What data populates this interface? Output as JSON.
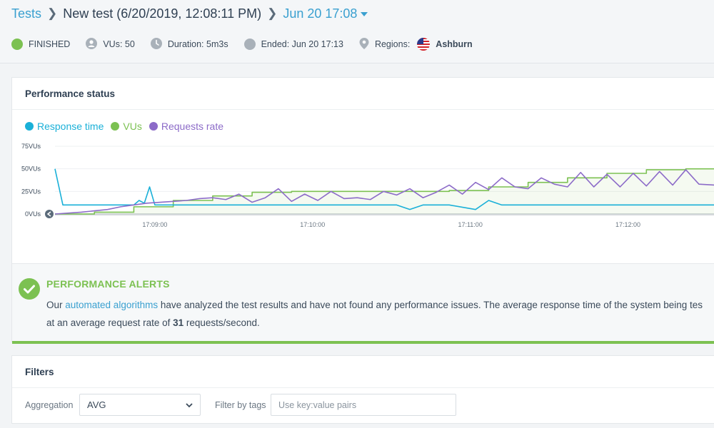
{
  "breadcrumb": {
    "root": "Tests",
    "test_name": "New test (6/20/2019, 12:08:11 PM)",
    "run": "Jun 20 17:08"
  },
  "status": {
    "state": "FINISHED",
    "vus": "VUs: 50",
    "duration": "Duration: 5m3s",
    "ended": "Ended: Jun 20 17:13",
    "regions_label": "Regions:",
    "region": "Ashburn"
  },
  "performance": {
    "title": "Performance status",
    "legend": [
      {
        "name": "Response time",
        "color": "#1ab0d8"
      },
      {
        "name": "VUs",
        "color": "#7cc152"
      },
      {
        "name": "Requests rate",
        "color": "#8c6bc8"
      }
    ]
  },
  "chart_data": {
    "type": "line",
    "x_ticks": [
      "17:09:00",
      "17:10:00",
      "17:11:00",
      "17:12:00"
    ],
    "y_ticks": [
      "75VUs",
      "50VUs",
      "25VUs",
      "0VUs"
    ],
    "ylim": [
      0,
      75
    ],
    "x_range_seconds": [
      0,
      251
    ],
    "x_tick_seconds": [
      38,
      98,
      158,
      218
    ],
    "series": [
      {
        "name": "VUs",
        "color": "#7cc152",
        "x": [
          0,
          15,
          30,
          45,
          60,
          75,
          90,
          105,
          120,
          135,
          150,
          165,
          180,
          195,
          210,
          225,
          240,
          251
        ],
        "y": [
          0,
          2,
          8,
          15,
          20,
          24,
          25,
          25,
          25,
          25,
          26,
          30,
          35,
          40,
          45,
          49,
          50,
          50
        ]
      },
      {
        "name": "Response time",
        "color": "#1ab0d8",
        "x": [
          0,
          3,
          10,
          20,
          30,
          32,
          34,
          36,
          38,
          40,
          50,
          60,
          70,
          80,
          90,
          100,
          110,
          120,
          130,
          135,
          140,
          150,
          160,
          165,
          170,
          180,
          190,
          200,
          210,
          220,
          230,
          240,
          251
        ],
        "y": [
          50,
          10,
          10,
          10,
          10,
          15,
          12,
          30,
          10,
          10,
          10,
          10,
          10,
          10,
          10,
          10,
          10,
          10,
          10,
          5,
          10,
          10,
          5,
          15,
          10,
          10,
          10,
          10,
          10,
          10,
          10,
          10,
          10
        ]
      },
      {
        "name": "Requests rate",
        "color": "#8c6bc8",
        "x": [
          0,
          10,
          20,
          25,
          30,
          35,
          40,
          45,
          50,
          55,
          60,
          65,
          70,
          75,
          80,
          85,
          90,
          95,
          100,
          105,
          110,
          115,
          120,
          125,
          130,
          135,
          140,
          145,
          150,
          155,
          160,
          165,
          170,
          175,
          180,
          185,
          190,
          195,
          200,
          205,
          210,
          215,
          220,
          225,
          230,
          235,
          240,
          245,
          251
        ],
        "y": [
          0,
          2,
          5,
          8,
          10,
          12,
          13,
          14,
          15,
          17,
          18,
          16,
          22,
          13,
          18,
          28,
          14,
          22,
          15,
          25,
          17,
          18,
          16,
          25,
          21,
          28,
          18,
          24,
          32,
          22,
          35,
          27,
          40,
          30,
          28,
          40,
          33,
          30,
          46,
          30,
          44,
          30,
          45,
          31,
          47,
          32,
          49,
          33,
          32
        ]
      }
    ]
  },
  "alerts": {
    "title": "PERFORMANCE ALERTS",
    "text_before_link": "Our ",
    "link": "automated algorithms",
    "text_after_link": " have analyzed the test results and have not found any performance issues. The average response time of the system being tes",
    "line2_before": "at an average request rate of ",
    "rate_value": "31",
    "line2_after": " requests/second."
  },
  "filters": {
    "title": "Filters",
    "aggregation_label": "Aggregation",
    "aggregation_value": "AVG",
    "tags_label": "Filter by tags",
    "tags_placeholder": "Use key:value pairs"
  }
}
